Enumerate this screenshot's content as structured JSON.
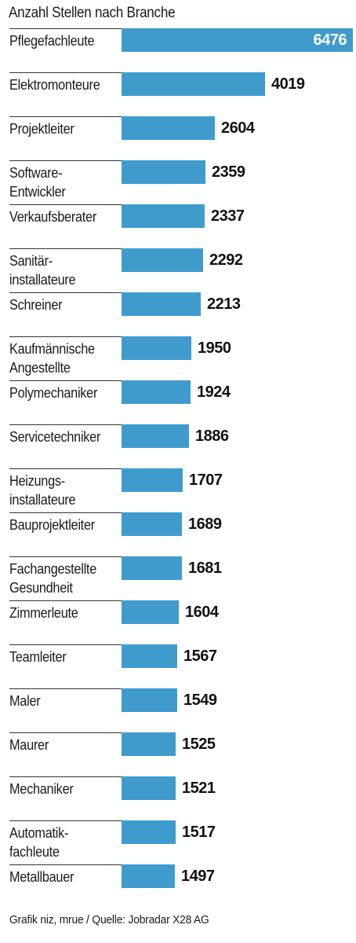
{
  "chart_data": {
    "type": "bar",
    "orientation": "horizontal",
    "title": "Anzahl Stellen nach Branche",
    "source": "Grafik niz, mrue / Quelle: Jobradar X28 AG",
    "categories": [
      "Pflegefachleute",
      "Elektromonteure",
      "Projektleiter",
      "Software-\nEntwickler",
      "Verkaufsberater",
      "Sanitär-\ninstallateure",
      "Schreiner",
      "Kaufmännische\nAngestellte",
      "Polymechaniker",
      "Servicetechniker",
      "Heizungs-\ninstallateure",
      "Bauprojektleiter",
      "Fachangestellte\nGesundheit",
      "Zimmerleute",
      "Teamleiter",
      "Maler",
      "Maurer",
      "Mechaniker",
      "Automatik-\nfachleute",
      "Metallbauer"
    ],
    "values": [
      6476,
      4019,
      2604,
      2359,
      2337,
      2292,
      2213,
      1950,
      1924,
      1886,
      1707,
      1689,
      1681,
      1604,
      1567,
      1549,
      1525,
      1521,
      1517,
      1497
    ],
    "xlim": [
      0,
      6476
    ],
    "grid": false,
    "legend": "none",
    "bar_color": "#3f9bcc"
  }
}
